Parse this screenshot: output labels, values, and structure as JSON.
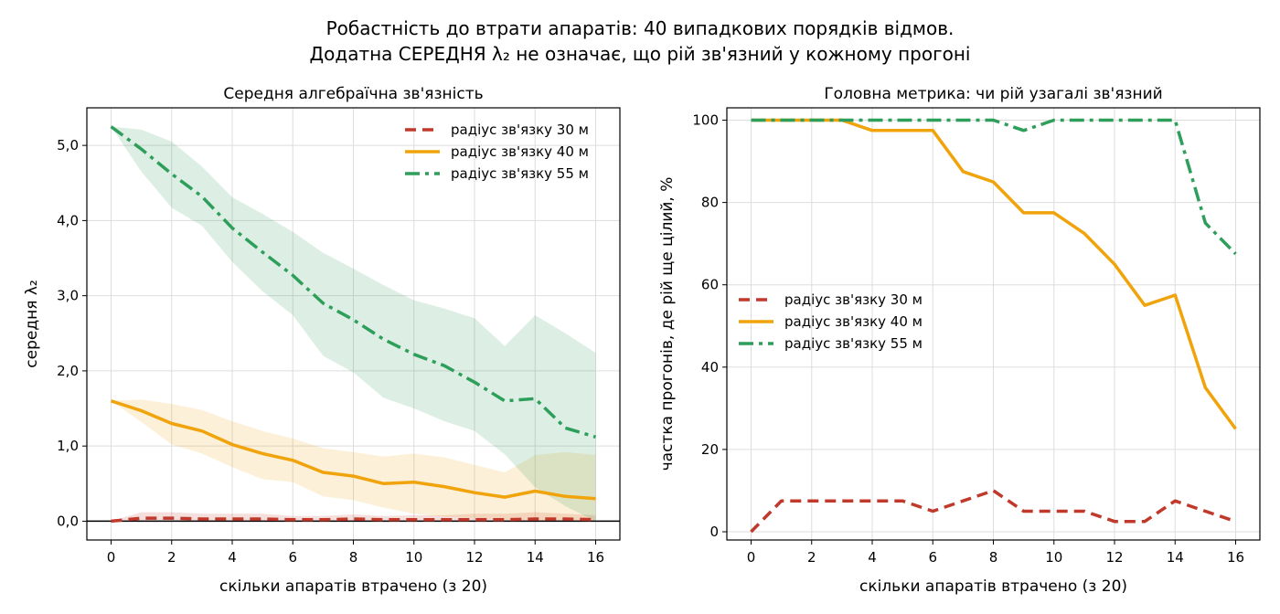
{
  "figure": {
    "title_line1": "Робастність до втрати апаратів: 40 випадкових порядків відмов.",
    "title_line2": "Додатна СЕРЕДНЯ λ₂ не означає, що рій зв'язний у кожному прогоні"
  },
  "chart_data": [
    {
      "type": "line",
      "title": "Середня алгебраїчна зв'язність",
      "xlabel": "скільки апаратів втрачено (з 20)",
      "ylabel": "середня λ₂",
      "xlim": [
        -0.8,
        16.8
      ],
      "ylim": [
        -0.25,
        5.5
      ],
      "xticks": [
        0,
        2,
        4,
        6,
        8,
        10,
        12,
        14,
        16
      ],
      "yticks": [
        0,
        1,
        2,
        3,
        4,
        5
      ],
      "ytick_labels": [
        "0,0",
        "1,0",
        "2,0",
        "3,0",
        "4,0",
        "5,0"
      ],
      "grid": true,
      "zero_line": true,
      "legend": "upper right",
      "x": [
        0,
        1,
        2,
        3,
        4,
        5,
        6,
        7,
        8,
        9,
        10,
        11,
        12,
        13,
        14,
        15,
        16
      ],
      "series": [
        {
          "name": "радіус зв'язку 30 м",
          "color": "#c0392b",
          "style": "dashed",
          "values": [
            0.0,
            0.04,
            0.04,
            0.03,
            0.03,
            0.03,
            0.02,
            0.02,
            0.03,
            0.02,
            0.02,
            0.02,
            0.02,
            0.02,
            0.03,
            0.03,
            0.02
          ],
          "band_low": [
            0.0,
            0.0,
            0.0,
            0.0,
            0.0,
            0.0,
            0.0,
            0.0,
            0.0,
            0.0,
            0.0,
            0.0,
            0.0,
            0.0,
            0.0,
            0.0,
            0.0
          ],
          "band_high": [
            0.0,
            0.12,
            0.12,
            0.1,
            0.1,
            0.1,
            0.07,
            0.07,
            0.09,
            0.07,
            0.08,
            0.08,
            0.1,
            0.1,
            0.12,
            0.1,
            0.08
          ]
        },
        {
          "name": "радіус зв'язку 40 м",
          "color": "#f0a30a",
          "style": "solid",
          "values": [
            1.6,
            1.47,
            1.3,
            1.2,
            1.02,
            0.9,
            0.81,
            0.65,
            0.6,
            0.5,
            0.52,
            0.46,
            0.38,
            0.32,
            0.4,
            0.33,
            0.3
          ],
          "band_low": [
            1.6,
            1.32,
            1.02,
            0.9,
            0.72,
            0.56,
            0.52,
            0.33,
            0.28,
            0.18,
            0.1,
            0.06,
            0.04,
            0.02,
            0.01,
            0.0,
            0.0
          ],
          "band_high": [
            1.6,
            1.62,
            1.56,
            1.48,
            1.33,
            1.2,
            1.1,
            0.97,
            0.92,
            0.86,
            0.9,
            0.85,
            0.75,
            0.65,
            0.88,
            0.92,
            0.88
          ]
        },
        {
          "name": "радіус зв'язку 55 м",
          "color": "#2e9e5b",
          "style": "dashdot",
          "values": [
            5.25,
            4.95,
            4.62,
            4.32,
            3.9,
            3.58,
            3.27,
            2.9,
            2.68,
            2.42,
            2.22,
            2.07,
            1.85,
            1.6,
            1.63,
            1.24,
            1.12
          ],
          "band_low": [
            5.25,
            4.65,
            4.17,
            3.93,
            3.45,
            3.06,
            2.74,
            2.2,
            1.98,
            1.64,
            1.5,
            1.33,
            1.2,
            0.89,
            0.45,
            0.2,
            0.0
          ],
          "band_high": [
            5.25,
            5.21,
            5.05,
            4.72,
            4.31,
            4.09,
            3.85,
            3.57,
            3.36,
            3.14,
            2.94,
            2.83,
            2.7,
            2.33,
            2.74,
            2.5,
            2.24
          ]
        }
      ]
    },
    {
      "type": "line",
      "title": "Головна метрика: чи рій узагалі зв'язний",
      "xlabel": "скільки апаратів втрачено (з 20)",
      "ylabel": "частка прогонів, де рій ще цілий, %",
      "xlim": [
        -0.8,
        16.8
      ],
      "ylim": [
        -2,
        103
      ],
      "xticks": [
        0,
        2,
        4,
        6,
        8,
        10,
        12,
        14,
        16
      ],
      "yticks": [
        0,
        20,
        40,
        60,
        80,
        100
      ],
      "ytick_labels": [
        "0",
        "20",
        "40",
        "60",
        "80",
        "100"
      ],
      "grid": true,
      "zero_line": false,
      "legend": "center left",
      "x": [
        0,
        1,
        2,
        3,
        4,
        5,
        6,
        7,
        8,
        9,
        10,
        11,
        12,
        13,
        14,
        15,
        16
      ],
      "series": [
        {
          "name": "радіус зв'язку 30 м",
          "color": "#c0392b",
          "style": "dashed",
          "values": [
            0,
            7.5,
            7.5,
            7.5,
            7.5,
            7.5,
            5,
            7.5,
            10,
            5,
            5,
            5,
            2.5,
            2.5,
            7.5,
            5,
            2.5
          ]
        },
        {
          "name": "радіус зв'язку 40 м",
          "color": "#f0a30a",
          "style": "solid",
          "values": [
            100,
            100,
            100,
            100,
            97.5,
            97.5,
            97.5,
            87.5,
            85,
            77.5,
            77.5,
            72.5,
            65,
            55,
            57.5,
            35,
            25
          ]
        },
        {
          "name": "радіус зв'язку 55 м",
          "color": "#2e9e5b",
          "style": "dashdot",
          "values": [
            100,
            100,
            100,
            100,
            100,
            100,
            100,
            100,
            100,
            97.5,
            100,
            100,
            100,
            100,
            100,
            75,
            67.5
          ]
        }
      ]
    }
  ]
}
